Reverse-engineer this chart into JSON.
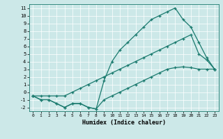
{
  "xlabel": "Humidex (Indice chaleur)",
  "bg_color": "#cce8e8",
  "line_color": "#1a7a6e",
  "xlim": [
    -0.5,
    23.5
  ],
  "ylim": [
    -2.5,
    11.5
  ],
  "xticks": [
    0,
    1,
    2,
    3,
    4,
    5,
    6,
    7,
    8,
    9,
    10,
    11,
    12,
    13,
    14,
    15,
    16,
    17,
    18,
    19,
    20,
    21,
    22,
    23
  ],
  "yticks": [
    -2,
    -1,
    0,
    1,
    2,
    3,
    4,
    5,
    6,
    7,
    8,
    9,
    10,
    11
  ],
  "line1_x": [
    0,
    1,
    2,
    3,
    4,
    5,
    6,
    7,
    8,
    9,
    10,
    11,
    12,
    13,
    14,
    15,
    16,
    17,
    18,
    19,
    20,
    21,
    22,
    23
  ],
  "line1_y": [
    -0.5,
    -1,
    -1,
    -1.5,
    -2,
    -1.5,
    -1.5,
    -2,
    -2.2,
    1.5,
    4,
    5.5,
    6.5,
    7.5,
    8.5,
    9.5,
    10,
    10.5,
    11,
    9.5,
    8.5,
    6.5,
    4.5,
    3
  ],
  "line2_x": [
    0,
    1,
    2,
    3,
    4,
    5,
    6,
    7,
    8,
    9,
    10,
    11,
    12,
    13,
    14,
    15,
    16,
    17,
    18,
    19,
    20,
    21,
    22,
    23
  ],
  "line2_y": [
    -0.5,
    -0.5,
    -0.5,
    -0.5,
    -0.5,
    0,
    0.5,
    1,
    1.5,
    2,
    2.5,
    3,
    3.5,
    4,
    4.5,
    5,
    5.5,
    6,
    6.5,
    7,
    7.5,
    5,
    4.2,
    3
  ],
  "line3_x": [
    0,
    1,
    2,
    3,
    4,
    5,
    6,
    7,
    8,
    9,
    10,
    11,
    12,
    13,
    14,
    15,
    16,
    17,
    18,
    19,
    20,
    21,
    22,
    23
  ],
  "line3_y": [
    -0.5,
    -1,
    -1,
    -1.5,
    -2,
    -1.5,
    -1.5,
    -2,
    -2.2,
    -1,
    -0.5,
    0,
    0.5,
    1,
    1.5,
    2,
    2.5,
    3,
    3.2,
    3.3,
    3.2,
    3,
    3,
    3
  ]
}
